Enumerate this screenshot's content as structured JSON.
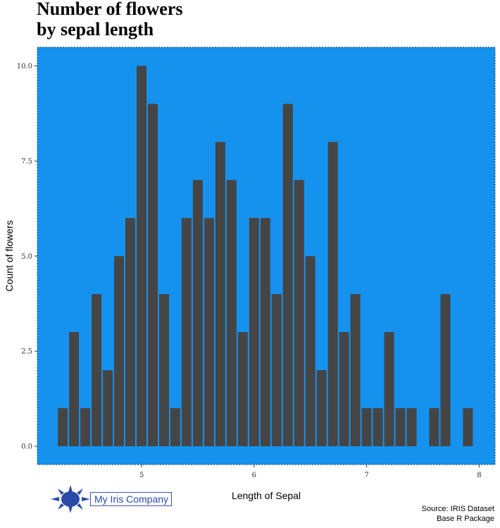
{
  "chart_data": {
    "type": "bar",
    "title_lines": [
      "Number of flowers",
      "by sepal length"
    ],
    "xlabel": "Length of Sepal",
    "ylabel": "Count of flowers",
    "caption_lines": [
      "Source: IRIS Dataset",
      "Base R Package"
    ],
    "x": [
      4.3,
      4.4,
      4.5,
      4.6,
      4.7,
      4.8,
      4.9,
      5.0,
      5.1,
      5.2,
      5.3,
      5.4,
      5.5,
      5.6,
      5.7,
      5.8,
      5.9,
      6.0,
      6.1,
      6.2,
      6.3,
      6.4,
      6.5,
      6.6,
      6.7,
      6.8,
      6.9,
      7.0,
      7.1,
      7.2,
      7.3,
      7.4,
      7.6,
      7.7,
      7.9
    ],
    "values": [
      1,
      3,
      1,
      4,
      2,
      5,
      6,
      10,
      9,
      4,
      1,
      6,
      7,
      6,
      8,
      7,
      3,
      6,
      6,
      4,
      9,
      7,
      5,
      2,
      8,
      3,
      4,
      1,
      1,
      3,
      1,
      1,
      1,
      4,
      1
    ],
    "xlim": [
      4.3,
      7.9
    ],
    "ylim": [
      0,
      10
    ],
    "xticks": [
      5,
      6,
      7,
      8
    ],
    "yticks": [
      0.0,
      2.5,
      5.0,
      7.5,
      10.0
    ],
    "ytick_labels": [
      "0.0",
      "2.5",
      "5.0",
      "7.5",
      "10.0"
    ],
    "grid": false,
    "colors": {
      "panel": "#1592ee",
      "bar": "#454545",
      "panel_border": "#1f3b63"
    }
  },
  "logo": {
    "text": "My Iris Company",
    "icon": "sun-icon",
    "color": "#2a4aa8"
  }
}
